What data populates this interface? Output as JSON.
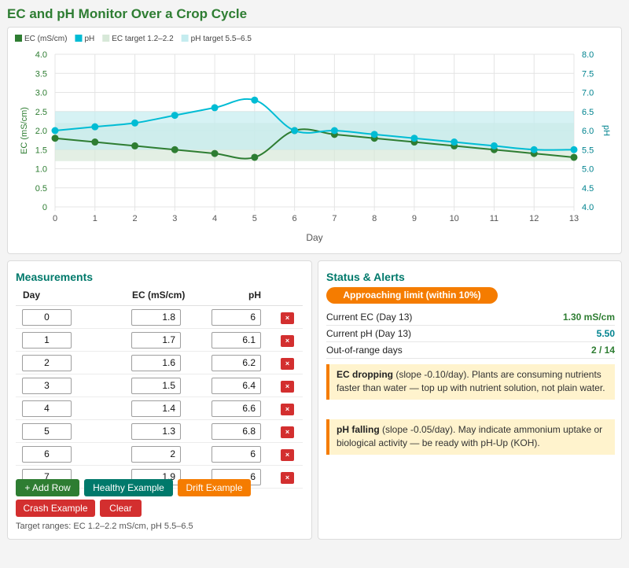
{
  "title": "EC and pH Monitor Over a Crop Cycle",
  "chart_data": {
    "type": "line",
    "x_label": "Day",
    "y_label_left": "EC (mS/cm)",
    "y_label_right": "pH",
    "x_ticks": [
      "0",
      "1",
      "2",
      "3",
      "4",
      "5",
      "6",
      "7",
      "8",
      "9",
      "10",
      "11",
      "12",
      "13"
    ],
    "y_left_ticks": [
      "0",
      "0.5",
      "1.0",
      "1.5",
      "2.0",
      "2.5",
      "3.0",
      "3.5",
      "4.0"
    ],
    "y_right_ticks": [
      "4.0",
      "4.5",
      "5.0",
      "5.5",
      "6.0",
      "6.5",
      "7.0",
      "7.5",
      "8.0"
    ],
    "y_left_range": [
      0,
      4
    ],
    "y_right_range": [
      4,
      8
    ],
    "grid": true,
    "legend_position": "top-left",
    "x": [
      0,
      1,
      2,
      3,
      4,
      5,
      6,
      7,
      8,
      9,
      10,
      11,
      12,
      13
    ],
    "series": [
      {
        "name": "EC (mS/cm)",
        "axis": "left",
        "color": "#2e7d32",
        "values": [
          1.8,
          1.7,
          1.6,
          1.5,
          1.4,
          1.3,
          2.0,
          1.9,
          1.8,
          1.7,
          1.6,
          1.5,
          1.4,
          1.3
        ]
      },
      {
        "name": "pH",
        "axis": "right",
        "color": "#00bcd4",
        "values": [
          6.0,
          6.1,
          6.2,
          6.4,
          6.6,
          6.8,
          6.0,
          6.0,
          5.9,
          5.8,
          5.7,
          5.6,
          5.5,
          5.5
        ]
      }
    ],
    "bands": [
      {
        "name": "EC target 1.2–2.2",
        "axis": "left",
        "range": [
          1.2,
          2.2
        ],
        "color": "#d7e8d8"
      },
      {
        "name": "pH target 5.5–6.5",
        "axis": "right",
        "range": [
          5.5,
          6.5
        ],
        "color": "#c4ecef"
      }
    ]
  },
  "measurements": {
    "title": "Measurements",
    "headers": {
      "day": "Day",
      "ec": "EC (mS/cm)",
      "ph": "pH"
    },
    "delete_label": "×",
    "rows": [
      {
        "day": "0",
        "ec": "1.8",
        "ph": "6"
      },
      {
        "day": "1",
        "ec": "1.7",
        "ph": "6.1"
      },
      {
        "day": "2",
        "ec": "1.6",
        "ph": "6.2"
      },
      {
        "day": "3",
        "ec": "1.5",
        "ph": "6.4"
      },
      {
        "day": "4",
        "ec": "1.4",
        "ph": "6.6"
      },
      {
        "day": "5",
        "ec": "1.3",
        "ph": "6.8"
      },
      {
        "day": "6",
        "ec": "2",
        "ph": "6"
      },
      {
        "day": "7",
        "ec": "1.9",
        "ph": "6"
      }
    ],
    "buttons": {
      "add_row": "+ Add Row",
      "healthy": "Healthy Example",
      "drift": "Drift Example",
      "crash": "Crash Example",
      "clear": "Clear"
    },
    "footnote": "Target ranges: EC 1.2–2.2 mS/cm, pH 5.5–6.5"
  },
  "status": {
    "title": "Status & Alerts",
    "badge": "Approaching limit (within 10%)",
    "badge_color": "#f57c00",
    "stats": [
      {
        "label": "Current EC (Day 13)",
        "value": "1.30 mS/cm",
        "color": "#2e7d32"
      },
      {
        "label": "Current pH (Day 13)",
        "value": "5.50",
        "color": "#00838f"
      },
      {
        "label": "Out-of-range days",
        "value": "2 / 14",
        "color": "#2e7d32"
      }
    ],
    "alerts": [
      {
        "heading": "EC dropping",
        "text": " (slope -0.10/day). Plants are consuming nutrients faster than water — top up with nutrient solution, not plain water."
      },
      {
        "heading": "pH falling",
        "text": " (slope -0.05/day). May indicate ammonium uptake or biological activity — be ready with pH-Up (KOH)."
      }
    ]
  }
}
